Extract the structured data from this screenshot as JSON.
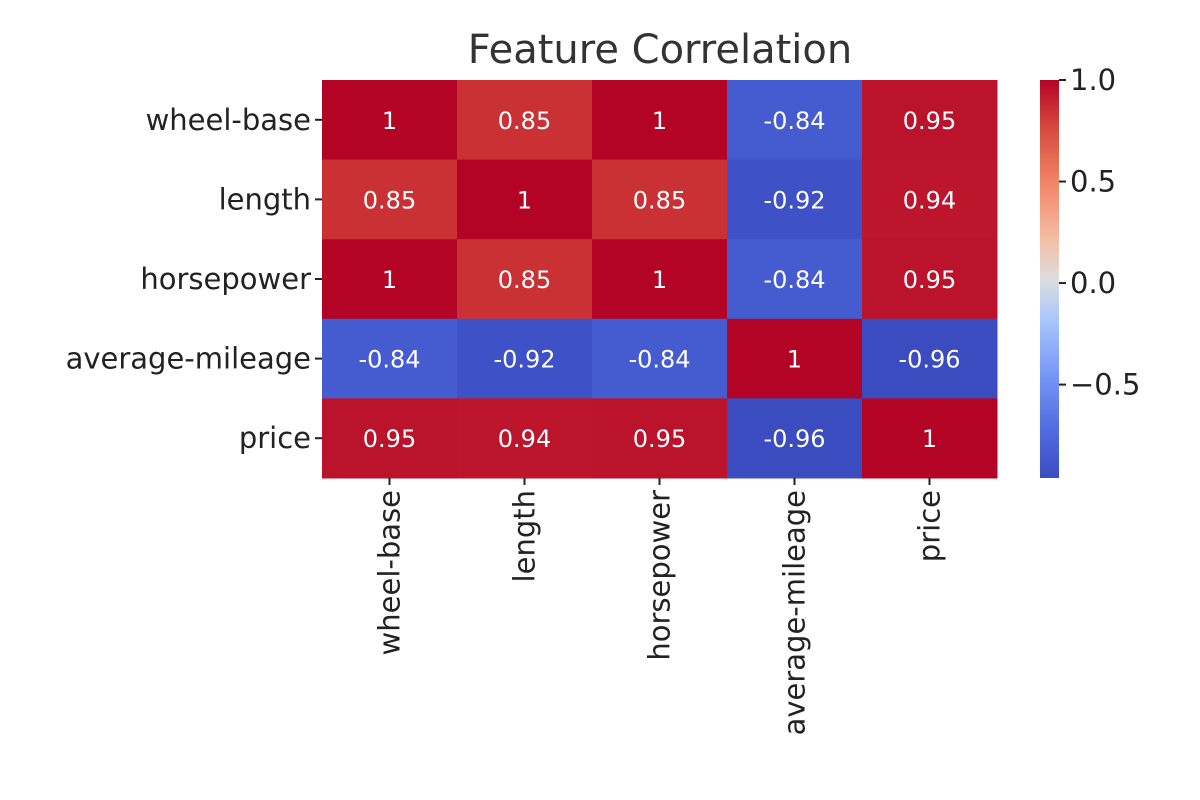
{
  "chart_data": {
    "type": "heatmap",
    "title": "Feature Correlation",
    "row_labels": [
      "wheel-base",
      "length",
      "horsepower",
      "average-mileage",
      "price"
    ],
    "col_labels": [
      "wheel-base",
      "length",
      "horsepower",
      "average-mileage",
      "price"
    ],
    "values": [
      [
        1,
        0.85,
        1,
        -0.84,
        0.95
      ],
      [
        0.85,
        1,
        0.85,
        -0.92,
        0.94
      ],
      [
        1,
        0.85,
        1,
        -0.84,
        0.95
      ],
      [
        -0.84,
        -0.92,
        -0.84,
        1,
        -0.96
      ],
      [
        0.95,
        0.94,
        0.95,
        -0.96,
        1
      ]
    ],
    "cell_labels": [
      [
        "1",
        "0.85",
        "1",
        "-0.84",
        "0.95"
      ],
      [
        "0.85",
        "1",
        "0.85",
        "-0.92",
        "0.94"
      ],
      [
        "1",
        "0.85",
        "1",
        "-0.84",
        "0.95"
      ],
      [
        "-0.84",
        "-0.92",
        "-0.84",
        "1",
        "-0.96"
      ],
      [
        "0.95",
        "0.94",
        "0.95",
        "-0.96",
        "1"
      ]
    ],
    "colormap": "coolwarm",
    "colorbar": {
      "range": [
        -0.96,
        1.0
      ],
      "ticks": [
        1.0,
        0.5,
        0.0,
        -0.5
      ],
      "tick_labels": [
        "1.0",
        "0.5",
        "0.0",
        "−0.5"
      ]
    },
    "colors": {
      "low": "#3b4cc0",
      "mid": "#dddddd",
      "high": "#b40426"
    }
  }
}
